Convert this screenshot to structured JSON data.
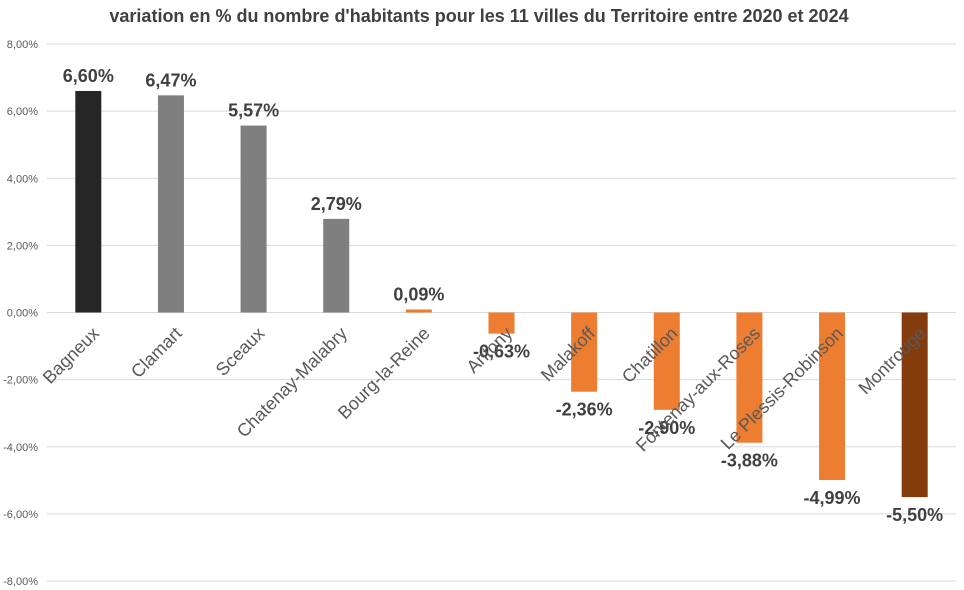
{
  "chart_data": {
    "type": "bar",
    "title": "variation en % du nombre d'habitants pour les 11 villes du Territoire entre 2020 et 2024",
    "categories": [
      "Bagneux",
      "Clamart",
      "Sceaux",
      "Chatenay-Malabry",
      "Bourg-la-Reine",
      "Antony",
      "Malakoff",
      "Chatillon",
      "Fontenay-aux-Roses",
      "Le Plessis-Robinson",
      "Montrouge"
    ],
    "values": [
      6.6,
      6.47,
      5.57,
      2.79,
      0.09,
      -0.63,
      -2.36,
      -2.9,
      -3.88,
      -4.99,
      -5.5
    ],
    "data_labels": [
      "6,60%",
      "6,47%",
      "5,57%",
      "2,79%",
      "0,09%",
      "-0,63%",
      "-2,36%",
      "-2,90%",
      "-3,88%",
      "-4,99%",
      "-5,50%"
    ],
    "colors": [
      "#262626",
      "#7f7f7f",
      "#7f7f7f",
      "#7f7f7f",
      "#ed7d31",
      "#ed7d31",
      "#ed7d31",
      "#ed7d31",
      "#ed7d31",
      "#ed7d31",
      "#843c0c"
    ],
    "ylim": [
      -8,
      8
    ],
    "yticks": [
      8,
      6,
      4,
      2,
      0,
      -2,
      -4,
      -6,
      -8
    ],
    "ytick_labels": [
      "8,00%",
      "6,00%",
      "4,00%",
      "2,00%",
      "0,00%",
      "-2,00%",
      "-4,00%",
      "-6,00%",
      "-8,00%"
    ],
    "grid": true,
    "xlabel": "",
    "ylabel": ""
  }
}
